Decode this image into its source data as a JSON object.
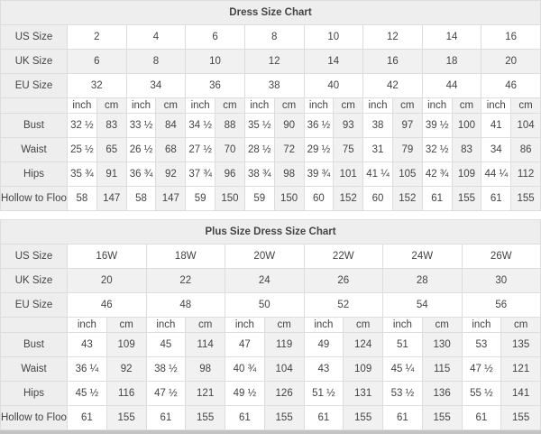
{
  "tables": [
    {
      "title": "Dress Size Chart",
      "unit_headers": [
        "inch",
        "cm"
      ],
      "size_rows": [
        {
          "label": "US Size",
          "values": [
            "2",
            "4",
            "6",
            "8",
            "10",
            "12",
            "14",
            "16"
          ]
        },
        {
          "label": "UK Size",
          "values": [
            "6",
            "8",
            "10",
            "12",
            "14",
            "16",
            "18",
            "20"
          ]
        },
        {
          "label": "EU Size",
          "values": [
            "32",
            "34",
            "36",
            "38",
            "40",
            "42",
            "44",
            "46"
          ]
        }
      ],
      "measurement_rows": [
        {
          "label": "Bust",
          "values": [
            "32 ½",
            "83",
            "33 ½",
            "84",
            "34 ½",
            "88",
            "35 ½",
            "90",
            "36 ½",
            "93",
            "38",
            "97",
            "39 ½",
            "100",
            "41",
            "104"
          ]
        },
        {
          "label": "Waist",
          "values": [
            "25 ½",
            "65",
            "26 ½",
            "68",
            "27 ½",
            "70",
            "28 ½",
            "72",
            "29 ½",
            "75",
            "31",
            "79",
            "32 ½",
            "83",
            "34",
            "86"
          ]
        },
        {
          "label": "Hips",
          "values": [
            "35 ¾",
            "91",
            "36 ¾",
            "92",
            "37 ¾",
            "96",
            "38 ¾",
            "98",
            "39 ¾",
            "101",
            "41 ¼",
            "105",
            "42 ¾",
            "109",
            "44 ¼",
            "112"
          ]
        },
        {
          "label": "Hollow to Floor",
          "values": [
            "58",
            "147",
            "58",
            "147",
            "59",
            "150",
            "59",
            "150",
            "60",
            "152",
            "60",
            "152",
            "61",
            "155",
            "61",
            "155"
          ]
        }
      ]
    },
    {
      "title": "Plus Size Dress Size Chart",
      "unit_headers": [
        "inch",
        "cm"
      ],
      "size_rows": [
        {
          "label": "US Size",
          "values": [
            "16W",
            "18W",
            "20W",
            "22W",
            "24W",
            "26W"
          ]
        },
        {
          "label": "UK Size",
          "values": [
            "20",
            "22",
            "24",
            "26",
            "28",
            "30"
          ]
        },
        {
          "label": "EU Size",
          "values": [
            "46",
            "48",
            "50",
            "52",
            "54",
            "56"
          ]
        }
      ],
      "measurement_rows": [
        {
          "label": "Bust",
          "values": [
            "43",
            "109",
            "45",
            "114",
            "47",
            "119",
            "49",
            "124",
            "51",
            "130",
            "53",
            "135"
          ]
        },
        {
          "label": "Waist",
          "values": [
            "36 ¼",
            "92",
            "38 ½",
            "98",
            "40 ¾",
            "104",
            "43",
            "109",
            "45 ¼",
            "115",
            "47 ½",
            "121"
          ]
        },
        {
          "label": "Hips",
          "values": [
            "45 ½",
            "116",
            "47 ½",
            "121",
            "49 ½",
            "126",
            "51 ½",
            "131",
            "53 ½",
            "136",
            "55 ½",
            "141"
          ]
        },
        {
          "label": "Hollow to Floor",
          "values": [
            "61",
            "155",
            "61",
            "155",
            "61",
            "155",
            "61",
            "155",
            "61",
            "155",
            "61",
            "155"
          ]
        }
      ]
    }
  ],
  "colors": {
    "header_bg": "#eeeeee",
    "shaded_bg": "#f1f1f1",
    "border": "#dddddd",
    "text": "#444444",
    "title_text": "#000000"
  }
}
